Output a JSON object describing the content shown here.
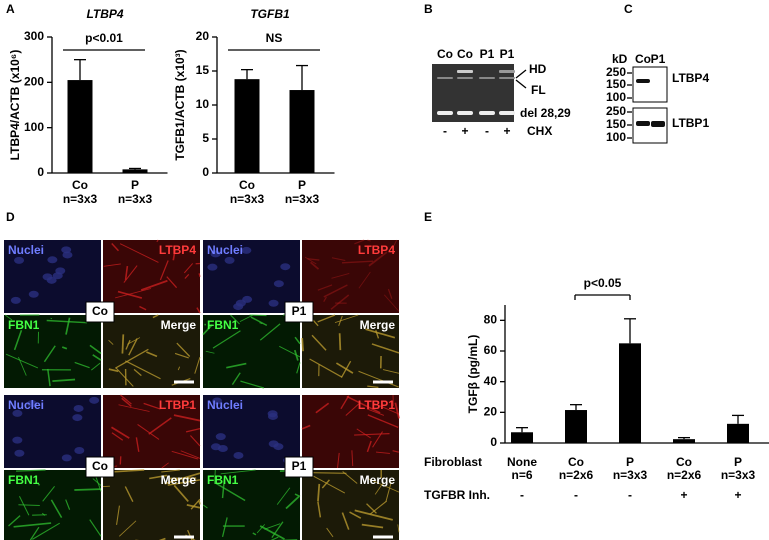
{
  "panel_labels": [
    "A",
    "B",
    "C",
    "D",
    "E"
  ],
  "chart_data": [
    {
      "type": "bar",
      "title": "LTBP4",
      "y_label": "LTBP4/ACTB (x10⁶)",
      "categories": [
        "Co",
        "P"
      ],
      "n_labels": [
        "n=3x3",
        "n=3x3"
      ],
      "values": [
        205,
        8
      ],
      "errors": [
        45,
        2
      ],
      "color": "#000000",
      "ylim": [
        0,
        300
      ],
      "yticks": [
        0,
        100,
        200,
        300
      ],
      "annotation": "p<0.01"
    },
    {
      "type": "bar",
      "title": "TGFB1",
      "y_label": "TGFB1/ACTB (x10³)",
      "categories": [
        "Co",
        "P"
      ],
      "n_labels": [
        "n=3x3",
        "n=3x3"
      ],
      "values": [
        13.8,
        12.2
      ],
      "errors": [
        1.4,
        3.6
      ],
      "color": "#000000",
      "ylim": [
        0,
        20
      ],
      "yticks": [
        0,
        5,
        10,
        15,
        20
      ],
      "annotation": "NS"
    },
    {
      "type": "bar",
      "y_label": "TGFβ (pg/mL)",
      "categories": [
        "None",
        "Co",
        "P",
        "Co",
        "P"
      ],
      "n_labels": [
        "n=6",
        "n=2x6",
        "n=3x3",
        "n=2x6",
        "n=3x3"
      ],
      "row_labels": [
        "Fibroblast",
        "TGFBR Inh."
      ],
      "inhibitor": [
        "-",
        "-",
        "-",
        "+",
        "+"
      ],
      "values": [
        7,
        21.5,
        65,
        2.5,
        12.5
      ],
      "errors": [
        3,
        3.5,
        16,
        1,
        5.5
      ],
      "color": "#000000",
      "ylim": [
        0,
        90
      ],
      "yticks": [
        0,
        20,
        40,
        60,
        80
      ],
      "annotation": "p<0.05"
    }
  ],
  "gel": {
    "lanes": [
      "Co",
      "Co",
      "P1",
      "P1"
    ],
    "bands": [
      "HD",
      "FL",
      "del 28,29"
    ],
    "treatment": [
      "-",
      "+",
      "-",
      "+"
    ],
    "treatment_label": "CHX"
  },
  "blot": {
    "unit": "kD",
    "lanes": [
      "Co",
      "P1"
    ],
    "markers_top": [
      250,
      150,
      100
    ],
    "markers_bottom": [
      250,
      150,
      100
    ],
    "proteins": [
      "LTBP4",
      "LTBP1"
    ]
  },
  "micrographs": [
    {
      "sample": "Co",
      "nuclei": "Nuclei",
      "protein": "LTBP4",
      "matrix": "FBN1",
      "merge": "Merge"
    },
    {
      "sample": "P1",
      "nuclei": "Nuclei",
      "protein": "LTBP4",
      "matrix": "FBN1",
      "merge": "Merge"
    },
    {
      "sample": "Co",
      "nuclei": "Nuclei",
      "protein": "LTBP1",
      "matrix": "FBN1",
      "merge": "Merge"
    },
    {
      "sample": "P1",
      "nuclei": "Nuclei",
      "protein": "LTBP1",
      "matrix": "FBN1",
      "merge": "Merge"
    }
  ]
}
